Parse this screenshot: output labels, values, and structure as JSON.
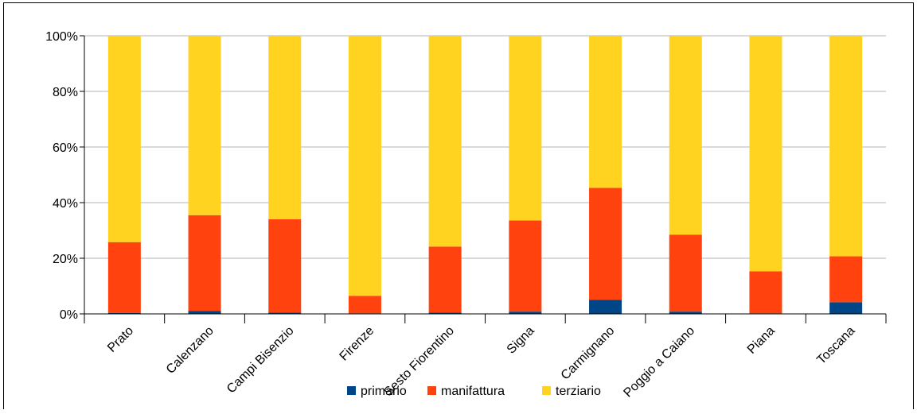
{
  "chart_data": {
    "type": "bar",
    "stacked": true,
    "percent_stacked": true,
    "categories": [
      "Prato",
      "Calenzano",
      "Campi Bisenzio",
      "Firenze",
      "Sesto Fiorentino",
      "Signa",
      "Carmignano",
      "Poggio a Caiano",
      "Piana",
      "Toscana"
    ],
    "series": [
      {
        "name": "primario",
        "color": "#004586",
        "values": [
          0.3,
          1.0,
          0.5,
          0.2,
          0.5,
          0.8,
          5.0,
          0.8,
          0.2,
          4.2
        ]
      },
      {
        "name": "manifattura",
        "color": "#ff420e",
        "values": [
          25.5,
          34.5,
          33.5,
          6.3,
          23.7,
          32.8,
          40.3,
          27.7,
          15.1,
          16.5
        ]
      },
      {
        "name": "terziario",
        "color": "#ffd320",
        "values": [
          74.2,
          64.5,
          66.0,
          93.5,
          75.8,
          66.4,
          54.7,
          71.5,
          84.7,
          79.3
        ]
      }
    ],
    "yticks": [
      "0%",
      "20%",
      "40%",
      "60%",
      "80%",
      "100%"
    ],
    "ylim": [
      0,
      100
    ],
    "grid": true,
    "legend": "bottom"
  }
}
